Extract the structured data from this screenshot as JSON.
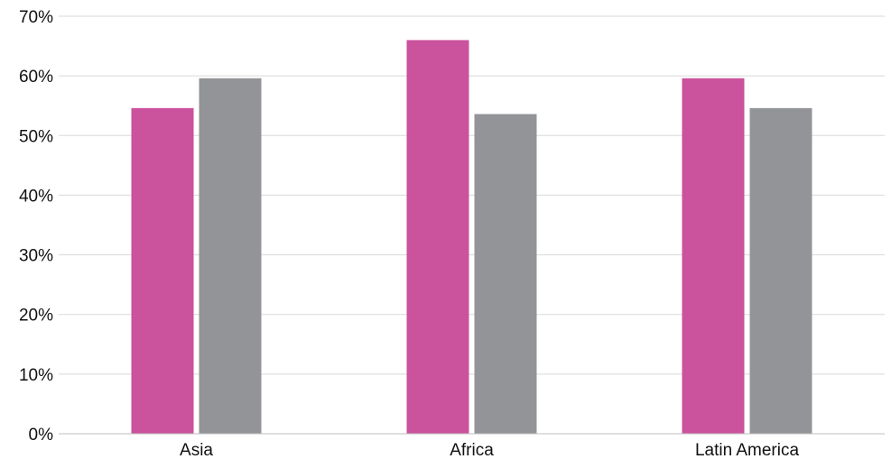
{
  "chart_data": {
    "type": "bar",
    "title": "",
    "xlabel": "",
    "ylabel": "",
    "categories": [
      "Asia",
      "Africa",
      "Latin America"
    ],
    "series": [
      {
        "color": "#cb529c",
        "values": [
          54.6,
          66.0,
          59.6
        ]
      },
      {
        "color": "#939497",
        "values": [
          59.6,
          53.6,
          54.6
        ]
      }
    ],
    "ylim": [
      0,
      70
    ],
    "yticks": [
      0,
      10,
      20,
      30,
      40,
      50,
      60,
      70
    ],
    "ytick_format": "%",
    "grid": true,
    "legend": "none"
  }
}
